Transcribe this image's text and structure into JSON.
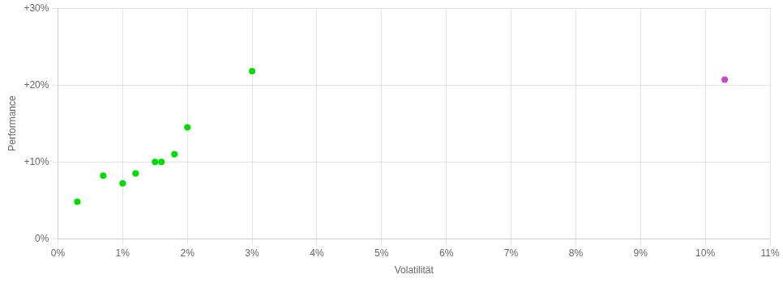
{
  "chart_data": {
    "type": "scatter",
    "x_label": "Volatilität",
    "y_label": "Performance",
    "series": [
      {
        "color": "#00dd00",
        "marker": "circle",
        "x": [
          0.003,
          0.007,
          0.01,
          0.012,
          0.015,
          0.016,
          0.018,
          0.02,
          0.03
        ],
        "values": [
          0.048,
          0.082,
          0.072,
          0.085,
          0.1,
          0.1,
          0.11,
          0.145,
          0.218
        ]
      },
      {
        "color": "#cc44cc",
        "marker": "circle",
        "x": [
          0.103
        ],
        "values": [
          0.207
        ]
      }
    ],
    "xlim": [
      0,
      0.11
    ],
    "ylim": [
      0,
      0.3
    ],
    "xticks": [
      {
        "value": 0.0,
        "label": "0%"
      },
      {
        "value": 0.01,
        "label": "1%"
      },
      {
        "value": 0.02,
        "label": "2%"
      },
      {
        "value": 0.03,
        "label": "3%"
      },
      {
        "value": 0.04,
        "label": "4%"
      },
      {
        "value": 0.05,
        "label": "5%"
      },
      {
        "value": 0.06,
        "label": "6%"
      },
      {
        "value": 0.07,
        "label": "7%"
      },
      {
        "value": 0.08,
        "label": "8%"
      },
      {
        "value": 0.09,
        "label": "9%"
      },
      {
        "value": 0.1,
        "label": "10%"
      },
      {
        "value": 0.11,
        "label": "11%"
      }
    ],
    "yticks": [
      {
        "value": 0.0,
        "label": "0%"
      },
      {
        "value": 0.1,
        "label": "+10%"
      },
      {
        "value": 0.2,
        "label": "+20%"
      },
      {
        "value": 0.3,
        "label": "+30%"
      }
    ],
    "grid": true
  }
}
